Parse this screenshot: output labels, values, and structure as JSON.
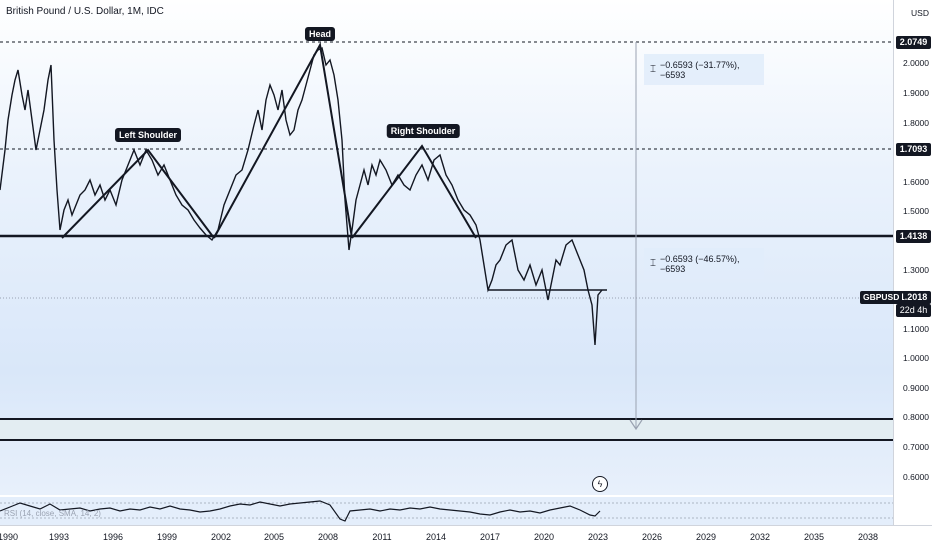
{
  "legend": {
    "title": "British Pound / U.S. Dollar, 1M, IDC"
  },
  "patterns": {
    "left_shoulder": "Left Shoulder",
    "head": "Head",
    "right_shoulder": "Right Shoulder"
  },
  "measure": {
    "upper": "−0.6593 (−31.77%), −6593",
    "lower": "−0.6593 (−46.57%), −6593"
  },
  "price_axis": {
    "currency": "USD",
    "ticks": [
      "2.0000",
      "1.9000",
      "1.8000",
      "1.6000",
      "1.5000",
      "1.3000",
      "1.1000",
      "1.0000",
      "0.9000",
      "0.8000",
      "0.7000",
      "0.6000"
    ],
    "levels": {
      "top": "2.0749",
      "mid": "1.7093",
      "neck": "1.4138",
      "current": "1.2018"
    },
    "countdown": "22d 4h",
    "symbol": "GBPUSD"
  },
  "time_axis": {
    "labels": [
      "1990",
      "1993",
      "1996",
      "1999",
      "2002",
      "2005",
      "2008",
      "2011",
      "2014",
      "2017",
      "2020",
      "2023",
      "2026",
      "2029",
      "2032",
      "2035",
      "2038"
    ]
  },
  "rsi": {
    "label": "RSI (14, close, SMA, 14, 2)"
  },
  "colors": {
    "line": "#131722",
    "grid": "#d0d4dc",
    "measure": "#9aa2b1"
  },
  "alert_icon": "lightning-icon"
}
